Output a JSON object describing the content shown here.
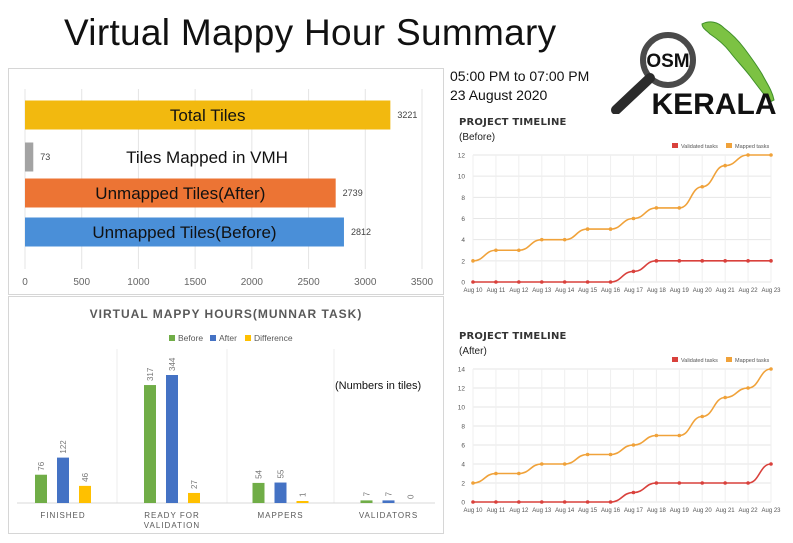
{
  "header": {
    "title": "Virtual Mappy Hour Summary",
    "time_range": "05:00 PM to 07:00 PM",
    "date": "23 August 2020"
  },
  "logo": {
    "top_text": "OSM",
    "bottom_text": "KERALA"
  },
  "colors": {
    "total": "#f2b90f",
    "vmh": "#a3a3a3",
    "unmapped_after": "#ec7434",
    "unmapped_before": "#4a8fd8",
    "before": "#70ad47",
    "after": "#4472c4",
    "difference": "#ffc000",
    "validated": "#d9413c",
    "mapped": "#f0a23a"
  },
  "chart_data": [
    {
      "type": "bar",
      "orientation": "horizontal",
      "categories": [
        "Total Tiles",
        "Tiles Mapped in VMH",
        "Unmapped Tiles(After)",
        "Unmapped Tiles(Before)"
      ],
      "values": [
        3221,
        73,
        2739,
        2812
      ],
      "xlim": [
        0,
        3500
      ],
      "xticks": [
        0,
        500,
        1000,
        1500,
        2000,
        2500,
        3000,
        3500
      ],
      "grid": true,
      "title": ""
    },
    {
      "type": "bar",
      "title": "VIRTUAL MAPPY HOURS(MUNNAR TASK)",
      "annotation": "(Numbers in tiles)",
      "categories": [
        "FINISHED",
        "READY FOR VALIDATION",
        "MAPPERS",
        "VALIDATORS"
      ],
      "category_lines": [
        [
          "FINISHED"
        ],
        [
          "READY FOR",
          "VALIDATION"
        ],
        [
          "MAPPERS"
        ],
        [
          "VALIDATORS"
        ]
      ],
      "series": [
        {
          "name": "Before",
          "values": [
            76,
            317,
            54,
            7
          ]
        },
        {
          "name": "After",
          "values": [
            122,
            344,
            55,
            7
          ]
        },
        {
          "name": "Difference",
          "values": [
            46,
            27,
            1,
            0
          ]
        }
      ],
      "ylim": [
        0,
        344
      ],
      "legend": "top-center"
    },
    {
      "type": "line",
      "title": "PROJECT TIMELINE",
      "subtitle": "(Before)",
      "x": [
        "Aug 10",
        "Aug 11",
        "Aug 12",
        "Aug 13",
        "Aug 14",
        "Aug 15",
        "Aug 16",
        "Aug 17",
        "Aug 18",
        "Aug 19",
        "Aug 20",
        "Aug 21",
        "Aug 22",
        "Aug 23"
      ],
      "series": [
        {
          "name": "Validated tasks",
          "values": [
            0,
            0,
            0,
            0,
            0,
            0,
            0,
            1,
            2,
            2,
            2,
            2,
            2,
            2
          ]
        },
        {
          "name": "Mapped tasks",
          "values": [
            2,
            3,
            3,
            4,
            4,
            5,
            5,
            6,
            7,
            7,
            9,
            11,
            12,
            12
          ]
        }
      ],
      "ylim": [
        0,
        12
      ],
      "yticks": [
        0,
        2,
        4,
        6,
        8,
        10,
        12
      ],
      "grid": true,
      "legend": "top-right"
    },
    {
      "type": "line",
      "title": "PROJECT TIMELINE",
      "subtitle": "(After)",
      "x": [
        "Aug 10",
        "Aug 11",
        "Aug 12",
        "Aug 13",
        "Aug 14",
        "Aug 15",
        "Aug 16",
        "Aug 17",
        "Aug 18",
        "Aug 19",
        "Aug 20",
        "Aug 21",
        "Aug 22",
        "Aug 23"
      ],
      "series": [
        {
          "name": "Validated tasks",
          "values": [
            0,
            0,
            0,
            0,
            0,
            0,
            0,
            1,
            2,
            2,
            2,
            2,
            2,
            4
          ]
        },
        {
          "name": "Mapped tasks",
          "values": [
            2,
            3,
            3,
            4,
            4,
            5,
            5,
            6,
            7,
            7,
            9,
            11,
            12,
            14
          ]
        }
      ],
      "ylim": [
        0,
        14
      ],
      "yticks": [
        0,
        2,
        4,
        6,
        8,
        10,
        12,
        14
      ],
      "grid": true,
      "legend": "top-right"
    }
  ]
}
